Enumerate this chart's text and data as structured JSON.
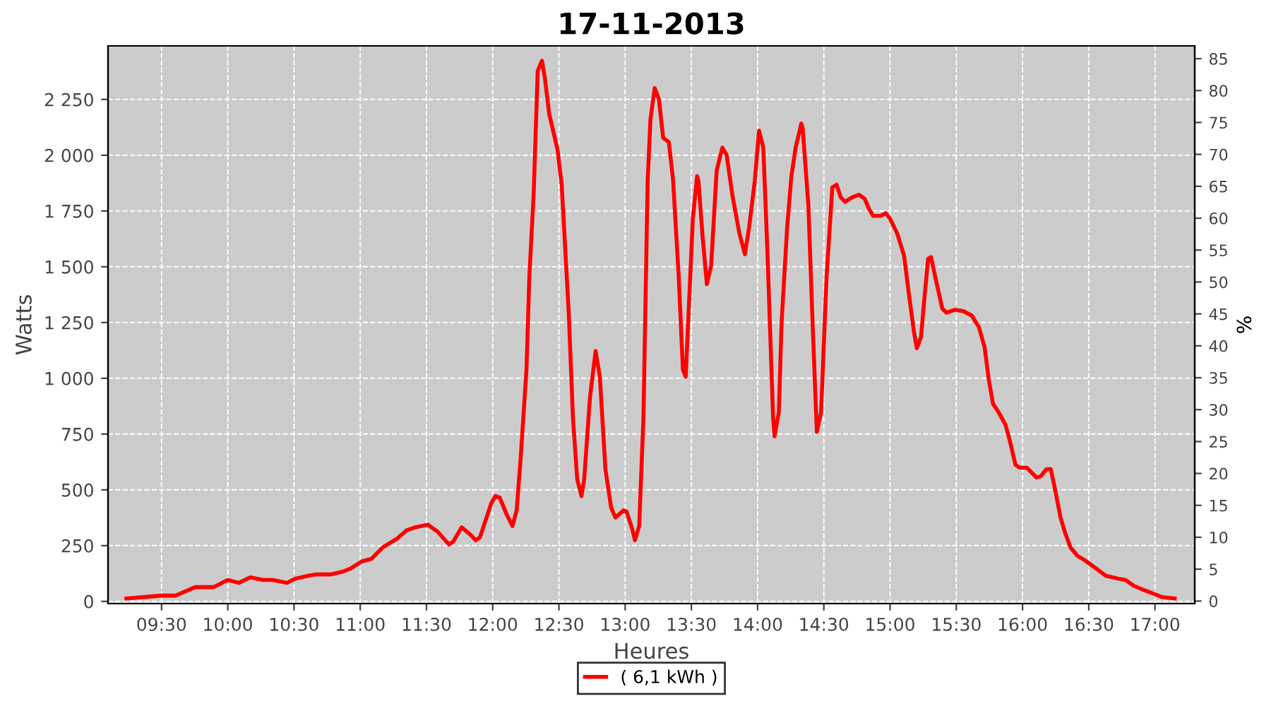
{
  "chart_data": {
    "type": "line",
    "title": "17-11-2013",
    "xlabel": "Heures",
    "ylabel": "Watts",
    "y2label": "%",
    "xlim": [
      9.096,
      17.3
    ],
    "xticks": [
      {
        "value": 9.5,
        "label": "09:30"
      },
      {
        "value": 10,
        "label": "10:00"
      },
      {
        "value": 10.5,
        "label": "10:30"
      },
      {
        "value": 11,
        "label": "11:00"
      },
      {
        "value": 11.5,
        "label": "11:30"
      },
      {
        "value": 12,
        "label": "12:00"
      },
      {
        "value": 12.5,
        "label": "12:30"
      },
      {
        "value": 13,
        "label": "13:00"
      },
      {
        "value": 13.5,
        "label": "13:30"
      },
      {
        "value": 14,
        "label": "14:00"
      },
      {
        "value": 14.5,
        "label": "14:30"
      },
      {
        "value": 15,
        "label": "15:00"
      },
      {
        "value": 15.5,
        "label": "15:30"
      },
      {
        "value": 16,
        "label": "16:00"
      },
      {
        "value": 16.5,
        "label": "16:30"
      },
      {
        "value": 17,
        "label": "17:00"
      }
    ],
    "ylim": [
      -10,
      2490
    ],
    "yticks": [
      0,
      250,
      500,
      750,
      {
        "value": 1000,
        "label": "1 000"
      },
      {
        "value": 1250,
        "label": "1 250"
      },
      {
        "value": 1500,
        "label": "1 500"
      },
      {
        "value": 1750,
        "label": "1 750"
      },
      {
        "value": 2000,
        "label": "2 000"
      },
      {
        "value": 2250,
        "label": "2 250"
      }
    ],
    "y2lim": [
      -0.4,
      87
    ],
    "y2ticks": [
      0,
      5,
      10,
      15,
      20,
      25,
      30,
      35,
      40,
      45,
      50,
      55,
      60,
      65,
      70,
      75,
      80,
      85
    ],
    "grid": true,
    "legend": "bottom",
    "line_style": "solid",
    "marker": "none",
    "series": [
      {
        "name": "( 6,1 kWh )",
        "color": "#ff0000",
        "x": [
          9.234,
          9.5,
          9.606,
          9.755,
          9.894,
          10.0,
          10.085,
          10.17,
          10.266,
          10.34,
          10.447,
          10.511,
          10.606,
          10.67,
          10.777,
          10.872,
          10.926,
          11.011,
          11.085,
          11.17,
          11.277,
          11.351,
          11.415,
          11.511,
          11.585,
          11.67,
          11.702,
          11.766,
          11.83,
          11.872,
          11.904,
          11.989,
          12.021,
          12.053,
          12.106,
          12.149,
          12.181,
          12.213,
          12.255,
          12.277,
          12.309,
          12.34,
          12.372,
          12.394,
          12.426,
          12.489,
          12.521,
          12.574,
          12.606,
          12.638,
          12.67,
          12.691,
          12.734,
          12.777,
          12.809,
          12.851,
          12.894,
          12.926,
          12.989,
          13.011,
          13.053,
          13.074,
          13.106,
          13.138,
          13.17,
          13.191,
          13.223,
          13.255,
          13.287,
          13.33,
          13.362,
          13.404,
          13.436,
          13.457,
          13.479,
          13.511,
          13.543,
          13.553,
          13.585,
          13.617,
          13.649,
          13.691,
          13.734,
          13.766,
          13.809,
          13.862,
          13.904,
          13.936,
          13.979,
          14.011,
          14.043,
          14.074,
          14.117,
          14.128,
          14.16,
          14.181,
          14.223,
          14.255,
          14.287,
          14.33,
          14.34,
          14.383,
          14.415,
          14.447,
          14.479,
          14.521,
          14.564,
          14.596,
          14.628,
          14.66,
          14.713,
          14.766,
          14.809,
          14.84,
          14.872,
          14.926,
          14.968,
          15.0,
          15.053,
          15.106,
          15.138,
          15.181,
          15.202,
          15.234,
          15.255,
          15.287,
          15.309,
          15.351,
          15.394,
          15.426,
          15.489,
          15.553,
          15.617,
          15.67,
          15.713,
          15.745,
          15.777,
          15.819,
          15.872,
          15.904,
          15.947,
          15.979,
          16.032,
          16.064,
          16.106,
          16.138,
          16.181,
          16.213,
          16.245,
          16.287,
          16.319,
          16.362,
          16.415,
          16.468,
          16.543,
          16.628,
          16.723,
          16.777,
          16.84,
          16.915,
          17.0,
          17.053,
          17.149
        ],
        "values": [
          13,
          26,
          26,
          64,
          64,
          96,
          83,
          108,
          96,
          96,
          83,
          102,
          115,
          121,
          121,
          134,
          147,
          179,
          191,
          242,
          281,
          319,
          332,
          344,
          312,
          255,
          268,
          332,
          300,
          274,
          287,
          440,
          472,
          465,
          389,
          338,
          408,
          657,
          1039,
          1460,
          1823,
          2378,
          2423,
          2346,
          2187,
          2027,
          1868,
          1294,
          822,
          548,
          472,
          548,
          912,
          1122,
          1007,
          593,
          421,
          376,
          408,
          402,
          325,
          274,
          338,
          822,
          1887,
          2161,
          2301,
          2250,
          2078,
          2059,
          1887,
          1460,
          1039,
          1007,
          1294,
          1715,
          1906,
          1887,
          1632,
          1422,
          1505,
          1932,
          2034,
          2002,
          1823,
          1651,
          1556,
          1677,
          1887,
          2110,
          2034,
          1568,
          822,
          740,
          848,
          1250,
          1677,
          1906,
          2034,
          2142,
          2123,
          1779,
          1250,
          759,
          848,
          1460,
          1855,
          1868,
          1811,
          1791,
          1811,
          1823,
          1804,
          1760,
          1728,
          1728,
          1740,
          1715,
          1651,
          1549,
          1396,
          1205,
          1135,
          1186,
          1332,
          1536,
          1543,
          1428,
          1313,
          1294,
          1307,
          1301,
          1281,
          1230,
          1141,
          995,
          886,
          848,
          791,
          720,
          612,
          599,
          599,
          580,
          555,
          561,
          593,
          593,
          504,
          376,
          312,
          242,
          204,
          185,
          153,
          115,
          102,
          96,
          70,
          51,
          32,
          19,
          13
        ]
      }
    ]
  }
}
